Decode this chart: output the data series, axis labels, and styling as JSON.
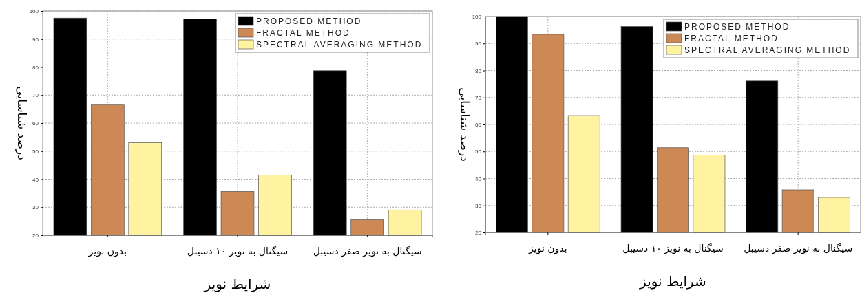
{
  "chart_data": [
    {
      "type": "bar",
      "xlabel": "شرایط نویز",
      "ylabel": "درصد شناسایی",
      "categories": [
        "بدون نویز",
        "سیگنال به نویز ۱۰ دسیبل",
        "سیگنال به نویز صفر دسیبل"
      ],
      "series": [
        {
          "name": "PROPOSED METHOD",
          "color": "#000000",
          "values": [
            97.5,
            97.2,
            78.7
          ]
        },
        {
          "name": "FRACTAL METHOD",
          "color": "#cc8855",
          "values": [
            66.7,
            35.6,
            25.5
          ]
        },
        {
          "name": "SPECTRAL AVERAGING METHOD",
          "color": "#fff2a0",
          "values": [
            53,
            41.5,
            29
          ]
        }
      ],
      "ylim": [
        20,
        100
      ],
      "yticks": [
        20,
        30,
        40,
        50,
        60,
        70,
        80,
        90,
        100
      ],
      "grid": true,
      "legend": "top right"
    },
    {
      "type": "bar",
      "xlabel": "شرایط نویز",
      "ylabel": "درصد شناسایی",
      "categories": [
        "بدون نویز",
        "سیگنال به نویز ۱۰ دسیبل",
        "سیگنال به نویز صفر دسیبل"
      ],
      "series": [
        {
          "name": "PROPOSED METHOD",
          "color": "#000000",
          "values": [
            100,
            96.3,
            76.1
          ]
        },
        {
          "name": "FRACTAL METHOD",
          "color": "#cc8855",
          "values": [
            93.4,
            51.4,
            35.8
          ]
        },
        {
          "name": "SPECTRAL AVERAGING METHOD",
          "color": "#fff2a0",
          "values": [
            63.3,
            48.7,
            33
          ]
        }
      ],
      "ylim": [
        20,
        100
      ],
      "yticks": [
        20,
        30,
        40,
        50,
        60,
        70,
        80,
        90,
        100
      ],
      "grid": true,
      "legend": "top right"
    }
  ]
}
